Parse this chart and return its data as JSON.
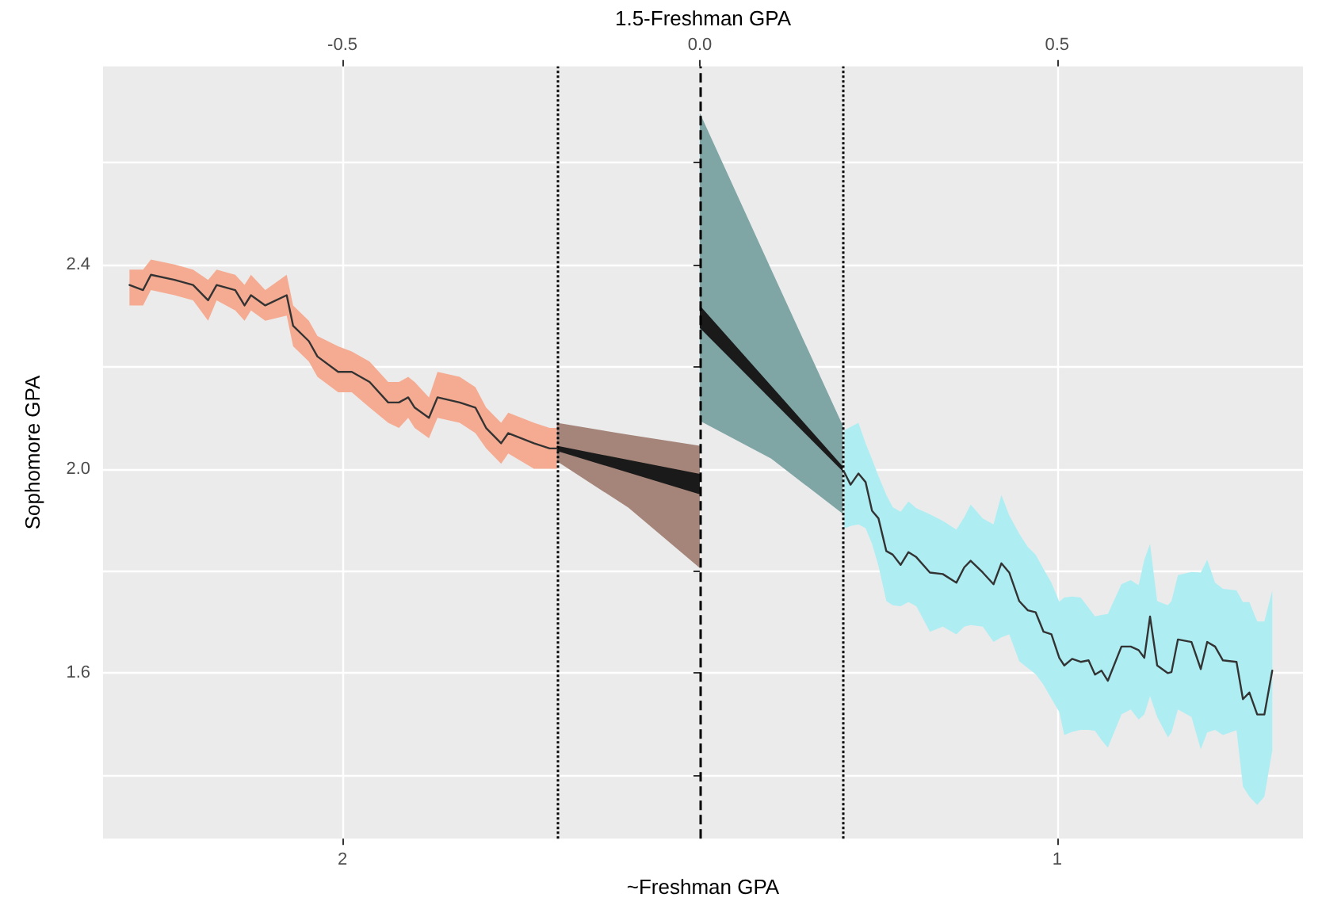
{
  "chart_data": {
    "type": "line",
    "xlabel": "~Freshman GPA",
    "x2label": "1.5-Freshman GPA",
    "ylabel": "Sophomore GPA",
    "xlim": [
      2.335,
      0.656
    ],
    "xticks": [
      2,
      1
    ],
    "x2lim": [
      -0.835,
      0.844
    ],
    "x2ticks": [
      -0.5,
      {
        "value": 0,
        "label": "0.0"
      },
      0.5
    ],
    "ylim": [
      1.276,
      2.788
    ],
    "yticks": [
      {
        "value": 1.4,
        "label": null
      },
      1.6,
      {
        "value": 1.8,
        "label": null
      },
      {
        "value": 2,
        "label": "2.0"
      },
      {
        "value": 2.2,
        "label": null
      },
      2.4,
      {
        "value": 2.6,
        "label": null
      }
    ],
    "grid": true,
    "ref_lines": [
      {
        "axis": "x",
        "value": 1.7,
        "line_style": "dotted",
        "color": "#000000"
      },
      {
        "axis": "x",
        "value": 1.5,
        "line_style": "dashed",
        "color": "#000000"
      },
      {
        "axis": "x",
        "value": 1.3,
        "line_style": "dotted",
        "color": "#000000"
      }
    ],
    "series": [
      {
        "color": "#f5ab92",
        "x": [
          2.298,
          2.279,
          2.268,
          2.235,
          2.209,
          2.188,
          2.176,
          2.15,
          2.137,
          2.128,
          2.108,
          2.078,
          2.069,
          2.047,
          2.035,
          2.006,
          1.987,
          1.962,
          1.936,
          1.921,
          1.908,
          1.899,
          1.879,
          1.867,
          1.836,
          1.814,
          1.799,
          1.778,
          1.768,
          1.732,
          1.71,
          1.7
        ],
        "values": [
          null,
          null,
          null,
          null,
          null,
          null,
          null,
          null,
          null,
          null,
          null,
          null,
          null,
          null,
          null,
          null,
          null,
          null,
          null,
          null,
          null,
          null,
          null,
          null,
          null,
          null,
          null,
          null,
          null,
          null,
          null,
          null
        ],
        "lower": [
          2.32,
          2.32,
          2.35,
          2.34,
          2.33,
          2.29,
          2.33,
          2.31,
          2.29,
          2.31,
          2.29,
          2.3,
          2.24,
          2.21,
          2.18,
          2.15,
          2.15,
          2.12,
          2.09,
          2.08,
          2.1,
          2.08,
          2.06,
          2.1,
          2.09,
          2.07,
          2.04,
          2.01,
          2.03,
          2,
          2,
          2
        ],
        "upper": [
          2.39,
          2.39,
          2.41,
          2.4,
          2.39,
          2.37,
          2.39,
          2.38,
          2.36,
          2.38,
          2.35,
          2.38,
          2.32,
          2.29,
          2.26,
          2.24,
          2.23,
          2.21,
          2.17,
          2.17,
          2.18,
          2.17,
          2.14,
          2.19,
          2.18,
          2.16,
          2.12,
          2.09,
          2.11,
          2.09,
          2.08,
          2.08
        ]
      },
      {
        "color": "#a5857a",
        "x": [
          1.7,
          1.6,
          1.5
        ],
        "values": [
          null,
          null,
          null
        ],
        "lower": [
          2.015,
          1.924,
          1.806
        ],
        "upper": [
          2.09,
          2.067,
          2.045
        ]
      },
      {
        "color": "#7fa5a5",
        "x": [
          1.5,
          1.4,
          1.3
        ],
        "values": [
          null,
          null,
          null
        ],
        "lower": [
          2.094,
          2.02,
          1.912
        ],
        "upper": [
          2.697,
          2.39,
          2.085
        ]
      },
      {
        "color": "#aeeef3",
        "x": [
          1.298,
          1.289,
          1.278,
          1.268,
          1.259,
          1.25,
          1.239,
          1.23,
          1.219,
          1.208,
          1.197,
          1.178,
          1.16,
          1.141,
          1.13,
          1.121,
          1.104,
          1.089,
          1.078,
          1.067,
          1.053,
          1.041,
          1.03,
          1.019,
          1.008,
          0.997,
          0.99,
          0.979,
          0.967,
          0.956,
          0.947,
          0.938,
          0.929,
          0.91,
          0.897,
          0.886,
          0.878,
          0.87,
          0.86,
          0.845,
          0.84,
          0.831,
          0.812,
          0.799,
          0.79,
          0.779,
          0.768,
          0.749,
          0.74,
          0.731,
          0.72,
          0.71,
          0.699
        ],
        "values": [
          null,
          null,
          null,
          null,
          null,
          null,
          null,
          null,
          null,
          null,
          null,
          null,
          null,
          null,
          null,
          null,
          null,
          null,
          null,
          null,
          null,
          null,
          null,
          null,
          null,
          null,
          null,
          null,
          null,
          null,
          null,
          null,
          null,
          null,
          null,
          null,
          null,
          null,
          null,
          null,
          null,
          null,
          null,
          null,
          null,
          null,
          null,
          null,
          null,
          null,
          null,
          null,
          null
        ],
        "lower": [
          1.883,
          1.888,
          1.891,
          1.884,
          1.853,
          1.81,
          1.741,
          1.733,
          1.731,
          1.739,
          1.731,
          1.681,
          1.691,
          1.676,
          1.691,
          1.694,
          1.691,
          1.661,
          1.67,
          1.676,
          1.623,
          1.61,
          1.598,
          1.577,
          1.55,
          1.524,
          1.479,
          1.485,
          1.489,
          1.489,
          1.487,
          1.469,
          1.454,
          1.519,
          1.529,
          1.509,
          1.519,
          1.555,
          1.514,
          1.474,
          1.484,
          1.529,
          1.514,
          1.451,
          1.484,
          1.489,
          1.479,
          1.488,
          1.378,
          1.358,
          1.342,
          1.358,
          1.448
        ],
        "upper": [
          2.075,
          2.082,
          2.09,
          2.05,
          2.019,
          1.986,
          1.949,
          1.925,
          1.916,
          1.936,
          1.923,
          1.911,
          1.898,
          1.881,
          1.905,
          1.93,
          1.903,
          1.891,
          1.949,
          1.909,
          1.873,
          1.847,
          1.832,
          1.804,
          1.777,
          1.74,
          1.748,
          1.75,
          1.748,
          1.728,
          1.711,
          1.714,
          1.716,
          1.774,
          1.782,
          1.772,
          1.822,
          1.853,
          1.741,
          1.733,
          1.741,
          1.792,
          1.798,
          1.797,
          1.822,
          1.777,
          1.765,
          1.762,
          1.739,
          1.739,
          1.701,
          1.701,
          1.762
        ]
      },
      {
        "color": "#333333",
        "x": [
          2.298,
          2.279,
          2.268,
          2.235,
          2.209,
          2.188,
          2.176,
          2.15,
          2.137,
          2.128,
          2.108,
          2.078,
          2.069,
          2.047,
          2.035,
          2.006,
          1.987,
          1.962,
          1.936,
          1.921,
          1.908,
          1.899,
          1.879,
          1.867,
          1.836,
          1.814,
          1.799,
          1.778,
          1.768,
          1.732,
          1.71,
          1.7
        ],
        "values": [
          2.36,
          2.35,
          2.38,
          2.37,
          2.36,
          2.33,
          2.36,
          2.35,
          2.32,
          2.34,
          2.32,
          2.34,
          2.28,
          2.25,
          2.22,
          2.19,
          2.19,
          2.17,
          2.13,
          2.13,
          2.14,
          2.12,
          2.1,
          2.14,
          2.13,
          2.12,
          2.08,
          2.05,
          2.07,
          2.05,
          2.04,
          2.04
        ]
      },
      {
        "color": "#1a1a1a",
        "x": [
          1.7,
          1.5
        ],
        "values": [
          null,
          null
        ],
        "lower": [
          2.035,
          1.95
        ],
        "upper": [
          2.045,
          1.99
        ]
      },
      {
        "color": "#1a1a1a",
        "x": [
          1.5,
          1.3
        ],
        "values": [
          null,
          null
        ],
        "lower": [
          2.276,
          1.995
        ],
        "upper": [
          2.32,
          2.005
        ]
      },
      {
        "color": "#333333",
        "x": [
          1.298,
          1.289,
          1.278,
          1.268,
          1.259,
          1.25,
          1.239,
          1.23,
          1.219,
          1.208,
          1.197,
          1.178,
          1.16,
          1.141,
          1.13,
          1.121,
          1.104,
          1.089,
          1.078,
          1.067,
          1.053,
          1.041,
          1.03,
          1.019,
          1.008,
          0.997,
          0.99,
          0.979,
          0.967,
          0.956,
          0.947,
          0.938,
          0.929,
          0.91,
          0.897,
          0.886,
          0.878,
          0.87,
          0.86,
          0.845,
          0.84,
          0.831,
          0.812,
          0.799,
          0.79,
          0.779,
          0.768,
          0.749,
          0.74,
          0.731,
          0.72,
          0.71,
          0.699
        ],
        "values": [
          1.994,
          1.969,
          1.991,
          1.974,
          1.918,
          1.903,
          1.839,
          1.832,
          1.812,
          1.837,
          1.827,
          1.797,
          1.794,
          1.777,
          1.807,
          1.82,
          1.797,
          1.774,
          1.815,
          1.797,
          1.741,
          1.723,
          1.719,
          1.681,
          1.676,
          1.63,
          1.615,
          1.628,
          1.622,
          1.625,
          1.597,
          1.605,
          1.585,
          1.652,
          1.652,
          1.645,
          1.63,
          1.711,
          1.615,
          1.6,
          1.602,
          1.666,
          1.661,
          1.608,
          1.661,
          1.652,
          1.625,
          1.622,
          1.549,
          1.562,
          1.519,
          1.519,
          1.605
        ]
      }
    ]
  }
}
